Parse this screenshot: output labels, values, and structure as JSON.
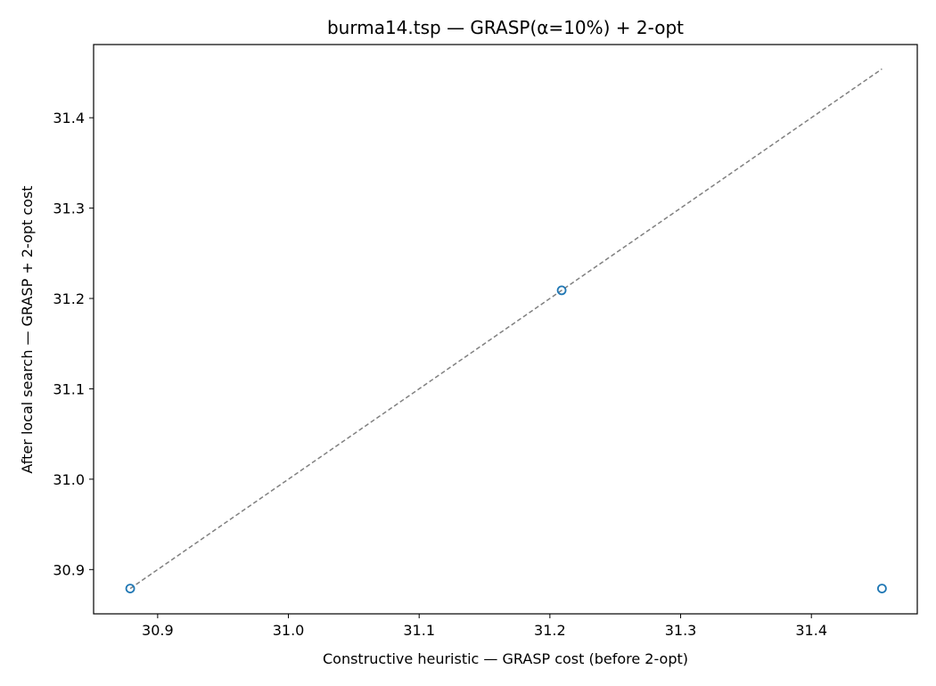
{
  "chart_data": {
    "type": "scatter",
    "title": "burma14.tsp — GRASP(α=10%) + 2-opt",
    "xlabel": "Constructive heuristic — GRASP cost (before 2-opt)",
    "ylabel": "After local search — GRASP + 2-opt cost",
    "xlim": [
      30.851,
      31.481
    ],
    "ylim": [
      30.851,
      31.481
    ],
    "xticks": [
      30.9,
      31.0,
      31.1,
      31.2,
      31.3,
      31.4
    ],
    "yticks": [
      30.9,
      31.0,
      31.1,
      31.2,
      31.3,
      31.4
    ],
    "xtick_labels": [
      "30.9",
      "31.0",
      "31.1",
      "31.2",
      "31.3",
      "31.4"
    ],
    "ytick_labels": [
      "30.9",
      "31.0",
      "31.1",
      "31.2",
      "31.3",
      "31.4"
    ],
    "points": [
      {
        "x": 30.879,
        "y": 30.879
      },
      {
        "x": 31.209,
        "y": 31.209
      },
      {
        "x": 31.454,
        "y": 30.879
      }
    ],
    "reference_line": {
      "style": "dashed",
      "color": "#808080",
      "from": [
        30.879,
        30.879
      ],
      "to": [
        31.454,
        31.454
      ]
    },
    "marker_color": "#1f77b4",
    "grid": false,
    "legend": "none"
  }
}
